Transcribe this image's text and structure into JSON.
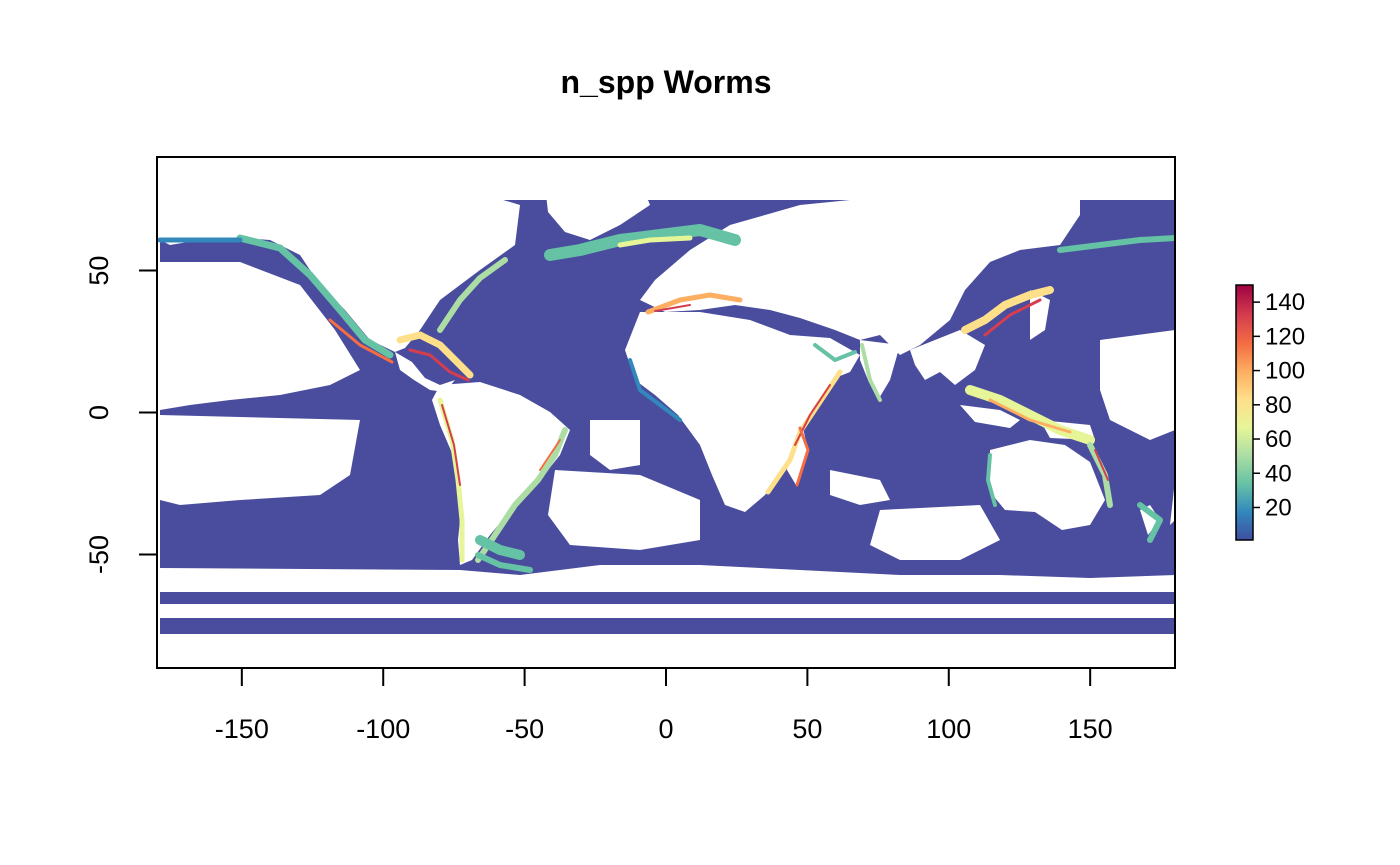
{
  "title": "n_spp Worms",
  "map": {
    "type": "raster",
    "variable": "n_spp",
    "x_axis": {
      "range": [
        -180,
        180
      ],
      "ticks": [
        -150,
        -100,
        -50,
        0,
        50,
        100,
        150
      ],
      "tick_labels": [
        "-150",
        "-100",
        "-50",
        "0",
        "50",
        "100",
        "150"
      ]
    },
    "y_axis": {
      "range": [
        -90,
        90
      ],
      "ticks": [
        -50,
        0,
        50
      ],
      "tick_labels": [
        "-50",
        "0",
        "50"
      ]
    },
    "ocean_color": "#4a4d9e",
    "land_color": "#ffffff"
  },
  "legend": {
    "placement": "right",
    "range": [
      1,
      150
    ],
    "ticks": [
      20,
      40,
      60,
      80,
      100,
      120,
      140
    ],
    "tick_labels": [
      "20",
      "40",
      "60",
      "80",
      "100",
      "120",
      "140"
    ],
    "palette": [
      "#3f4ea1",
      "#3288bd",
      "#66c2a5",
      "#abdda4",
      "#e6f598",
      "#fee08b",
      "#fdae61",
      "#f46d43",
      "#d53e4f",
      "#9e0142"
    ]
  }
}
